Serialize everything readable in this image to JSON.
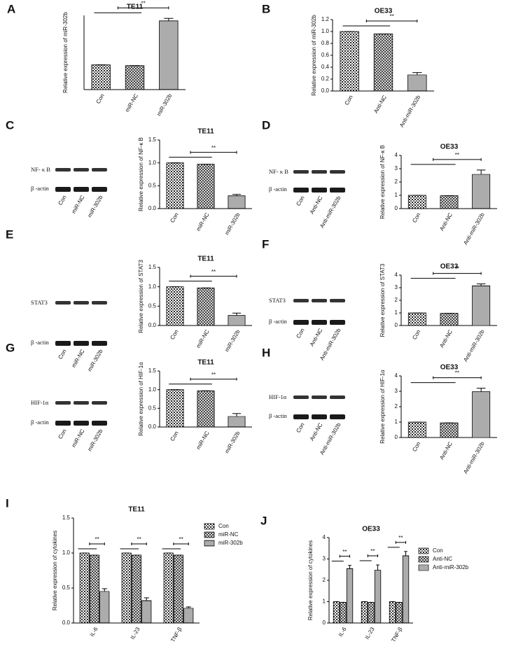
{
  "chart_data": [
    {
      "type": "bar",
      "panel": "A",
      "title": "TE11",
      "ylabel": "Relative expression of miR-302b",
      "color": "#222222",
      "categories": [
        "Con",
        "miR-NC",
        "miR-302b"
      ],
      "values": [
        1.0,
        0.97,
        2.78
      ],
      "errors": [
        0,
        0,
        0.1
      ],
      "ylim": [
        0,
        3
      ],
      "annotation": "**"
    },
    {
      "type": "bar",
      "panel": "B",
      "title": "OE33",
      "ylabel": "Relative expression of miR-302b",
      "color": "#222222",
      "categories": [
        "Con",
        "Anti-NC",
        "Anti-miR-302b"
      ],
      "values": [
        1.0,
        0.96,
        0.27
      ],
      "errors": [
        0,
        0,
        0.04
      ],
      "ylim": [
        0,
        1.2
      ],
      "yticks": [
        {
          "value": 0,
          "label": "0.0"
        },
        0.2,
        0.4,
        0.6,
        0.8,
        {
          "value": 1,
          "label": "1.0"
        },
        1.2
      ],
      "annotation": "**"
    },
    {
      "type": "bar",
      "panel": "C",
      "title": "TE11",
      "ylabel": "Relative expression of NF-κ B",
      "color": "#222222",
      "categories": [
        "Con",
        "miR-NC",
        "miR-302b"
      ],
      "values": [
        1.0,
        0.97,
        0.28
      ],
      "errors": [
        0,
        0,
        0.03
      ],
      "ylim": [
        0,
        1.5
      ],
      "yticks": [
        {
          "value": 0,
          "label": "0.0"
        },
        0.5,
        {
          "value": 1,
          "label": "1.0"
        },
        1.5
      ],
      "annotation": "**",
      "blot": {
        "rows": [
          "NF- κ B",
          "β -actin"
        ],
        "lanes": [
          "Con",
          "miR-NC",
          "miR-302b"
        ]
      }
    },
    {
      "type": "bar",
      "panel": "D",
      "title": "OE33",
      "ylabel": "Relative expression of NF-κ B",
      "color": "#222222",
      "categories": [
        "Con",
        "Anti-NC",
        "Anti-miR-302b"
      ],
      "values": [
        1.0,
        0.97,
        2.57
      ],
      "errors": [
        0,
        0,
        0.33
      ],
      "ylim": [
        0,
        4
      ],
      "yticks": [
        0,
        1,
        2,
        3,
        4
      ],
      "annotation": "**",
      "blot": {
        "rows": [
          "NF- κ B",
          "β -actin"
        ],
        "lanes": [
          "Con",
          "Anti-NC",
          "Anti-miR-302b"
        ]
      }
    },
    {
      "type": "bar",
      "panel": "E",
      "title": "TE11",
      "ylabel": "Relative expression of  STAT3",
      "color": "#222222",
      "categories": [
        "Con",
        "miR-NC",
        "miR-302b"
      ],
      "values": [
        1.0,
        0.97,
        0.26
      ],
      "errors": [
        0,
        0,
        0.06
      ],
      "ylim": [
        0,
        1.5
      ],
      "yticks": [
        {
          "value": 0,
          "label": "0.0"
        },
        0.5,
        {
          "value": 1,
          "label": "1.0"
        },
        1.5
      ],
      "annotation": "**",
      "blot": {
        "rows": [
          "STAT3",
          "β -actin"
        ],
        "lanes": [
          "Con",
          "miR-NC",
          "miR-302b"
        ]
      }
    },
    {
      "type": "bar",
      "panel": "F",
      "title": "OE33",
      "ylabel": "Relative expression of  STAT3",
      "color": "#222222",
      "categories": [
        "Con",
        "Anti-NC",
        "Anti-miR-302b"
      ],
      "values": [
        1.0,
        0.97,
        3.15
      ],
      "errors": [
        0,
        0,
        0.15
      ],
      "ylim": [
        0,
        4
      ],
      "yticks": [
        0,
        1,
        2,
        3,
        4
      ],
      "annotation": "**",
      "blot": {
        "rows": [
          "STAT3",
          "β -actin"
        ],
        "lanes": [
          "Con",
          "Anti-NC",
          "Anti-miR-302b"
        ]
      }
    },
    {
      "type": "bar",
      "panel": "G",
      "title": "TE11",
      "ylabel": "Relative expression of  HIF-1α",
      "color": "#222222",
      "categories": [
        "Con",
        "miR-NC",
        "miR-302b"
      ],
      "values": [
        1.0,
        0.97,
        0.28
      ],
      "errors": [
        0,
        0,
        0.08
      ],
      "ylim": [
        0,
        1.5
      ],
      "yticks": [
        {
          "value": 0,
          "label": "0.0"
        },
        0.5,
        {
          "value": 1,
          "label": "1.0"
        },
        1.5
      ],
      "annotation": "**",
      "blot": {
        "rows": [
          "HIF-1α",
          "β -actin"
        ],
        "lanes": [
          "Con",
          "miR-NC",
          "miR-302b"
        ]
      }
    },
    {
      "type": "bar",
      "panel": "H",
      "title": "OE33",
      "ylabel": "Relative expression of  HIF-1α",
      "color": "#222222",
      "categories": [
        "Con",
        "Anti-NC",
        "Anti-miR-302b"
      ],
      "values": [
        1.0,
        0.95,
        2.98
      ],
      "errors": [
        0,
        0,
        0.22
      ],
      "ylim": [
        0,
        4
      ],
      "yticks": [
        0,
        1,
        2,
        3,
        4
      ],
      "annotation": "**",
      "blot": {
        "rows": [
          "HIF-1α",
          "β -actin"
        ],
        "lanes": [
          "Con",
          "Anti-NC",
          "Anti-miR-302b"
        ]
      }
    },
    {
      "type": "grouped-bar",
      "panel": "I",
      "title": "TE11",
      "ylabel": "Relative expression of cytokines",
      "color": "#222222",
      "categories": [
        "IL-6",
        "IL-23",
        "TNF-β"
      ],
      "series": [
        {
          "name": "Con",
          "values": [
            1.0,
            1.0,
            1.0
          ],
          "errors": [
            0,
            0,
            0
          ]
        },
        {
          "name": "miR-NC",
          "values": [
            0.97,
            0.97,
            0.97
          ],
          "errors": [
            0,
            0,
            0
          ]
        },
        {
          "name": "miR-302b",
          "values": [
            0.45,
            0.32,
            0.21
          ],
          "errors": [
            0.04,
            0.04,
            0.02
          ]
        }
      ],
      "ylim": [
        0,
        1.5
      ],
      "yticks": [
        {
          "value": 0,
          "label": "0.0"
        },
        0.5,
        {
          "value": 1,
          "label": "1.0"
        },
        1.5
      ],
      "annotations": [
        "**",
        "**",
        "**"
      ]
    },
    {
      "type": "grouped-bar",
      "panel": "J",
      "title": "OE33",
      "ylabel": "Relative expression of cytokines",
      "color": "#222222",
      "categories": [
        "IL-6",
        "IL-23",
        "TNF-β"
      ],
      "series": [
        {
          "name": "Con",
          "values": [
            1.0,
            1.0,
            1.0
          ],
          "errors": [
            0,
            0,
            0
          ]
        },
        {
          "name": "Anti-NC",
          "values": [
            0.97,
            0.97,
            0.97
          ],
          "errors": [
            0,
            0,
            0
          ]
        },
        {
          "name": "Anti-miR-302b",
          "values": [
            2.55,
            2.47,
            3.15
          ],
          "errors": [
            0.15,
            0.25,
            0.2
          ]
        }
      ],
      "ylim": [
        0,
        4
      ],
      "yticks": [
        0,
        1,
        2,
        3,
        4
      ],
      "annotations": [
        "**",
        "**",
        "**"
      ]
    }
  ]
}
